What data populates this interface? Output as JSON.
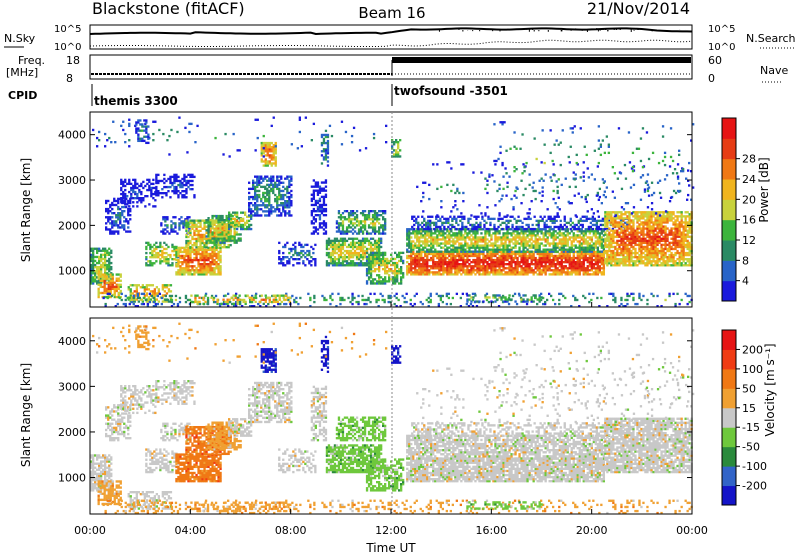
{
  "header": {
    "title": "Blackstone (fitACF)",
    "beam": "Beam 16",
    "date": "21/Nov/2014"
  },
  "sky_panel": {
    "left_label": "N.Sky",
    "left_ticks": [
      "10^5",
      "10^0"
    ],
    "right_ticks": [
      "10^5",
      "10^0"
    ],
    "right_label": "N.Search"
  },
  "freq_panel": {
    "left_label_line1": "Freq.",
    "left_label_line2": "[MHz]",
    "left_ticks": [
      "18",
      "8"
    ],
    "right_ticks": [
      "60",
      "0"
    ],
    "right_label": "Nave"
  },
  "cpid": {
    "label": "CPID",
    "segments": [
      {
        "text": "themis 3300",
        "start_hour": 0
      },
      {
        "text": "twofsound -3501",
        "start_hour": 12
      }
    ]
  },
  "colors": {
    "power_scale": [
      "#1a1adc",
      "#2864c8",
      "#2a8a64",
      "#3cb43c",
      "#c8d23c",
      "#f0b41e",
      "#f07814",
      "#e63c14",
      "#e61414"
    ],
    "velocity_scale": [
      "#1414c8",
      "#3264c8",
      "#2a8a3c",
      "#6ec83c",
      "#c8c8c8",
      "#f0a032",
      "#f07814",
      "#f03c14",
      "#e61414"
    ]
  },
  "chart_data": [
    {
      "type": "heatmap",
      "name": "power",
      "ylabel": "Slant Range [km]",
      "yticks": [
        "1000",
        "2000",
        "3000",
        "4000"
      ],
      "ylim": [
        200,
        4500
      ],
      "xlim": [
        0,
        24
      ],
      "colorbar_label": "Power [dB]",
      "colorbar_ticks": [
        "4",
        "8",
        "12",
        "16",
        "20",
        "24",
        "28"
      ],
      "colorbar_range": [
        0,
        32
      ]
    },
    {
      "type": "heatmap",
      "name": "velocity",
      "ylabel": "Slant Range [km]",
      "yticks": [
        "1000",
        "2000",
        "3000",
        "4000"
      ],
      "ylim": [
        200,
        4500
      ],
      "xlim": [
        0,
        24
      ],
      "xlabel": "Time UT",
      "xticks": [
        "00:00",
        "04:00",
        "08:00",
        "12:00",
        "16:00",
        "20:00",
        "00:00"
      ],
      "colorbar_label": "Velocity [m s⁻¹]",
      "colorbar_ticks": [
        "200",
        "100",
        "50",
        "15",
        "-15",
        "-50",
        "-100",
        "-200"
      ]
    }
  ]
}
